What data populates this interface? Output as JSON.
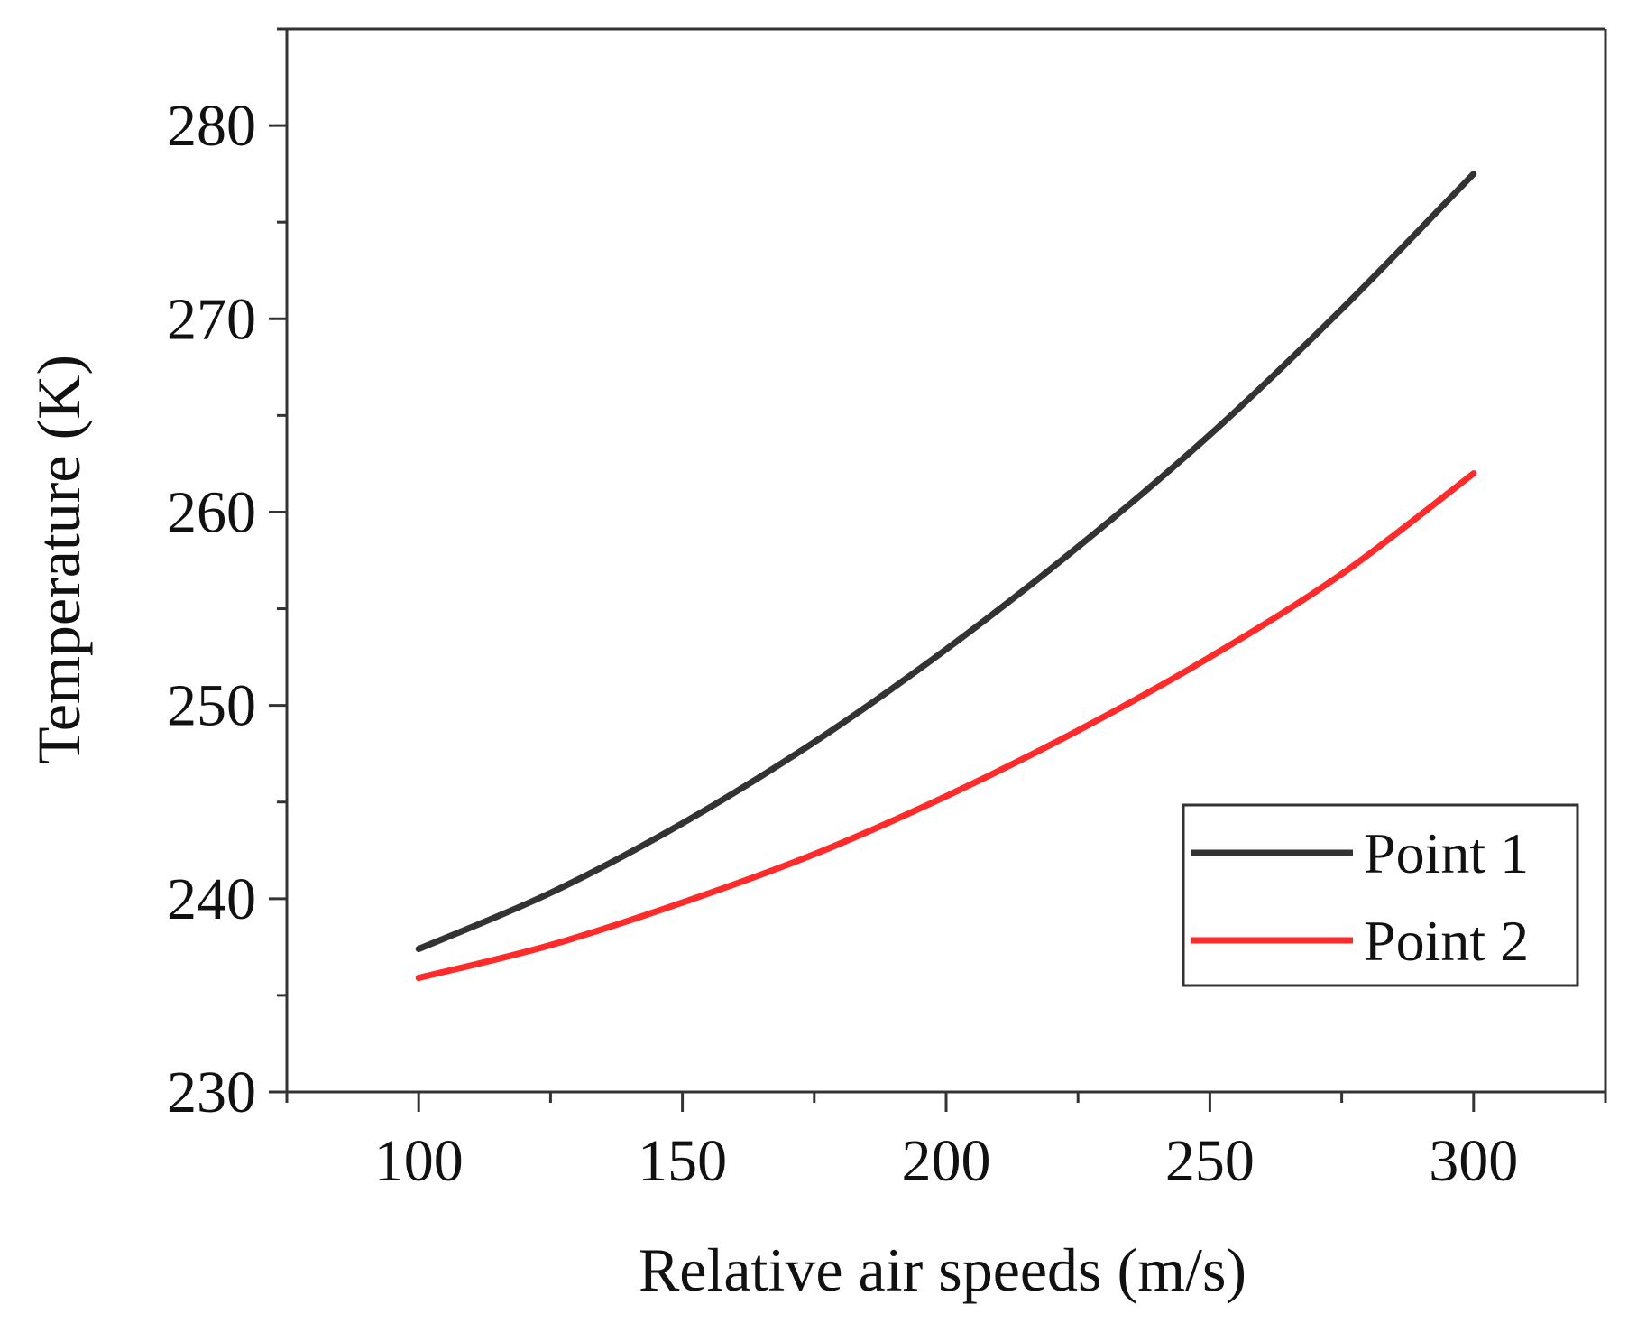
{
  "chart_data": {
    "type": "line",
    "xlabel": "Relative air speeds (m/s)",
    "ylabel": "Temperature (K)",
    "xlim": [
      75,
      325
    ],
    "ylim": [
      230,
      285
    ],
    "xticks": [
      100,
      150,
      200,
      250,
      300
    ],
    "yticks": [
      230,
      240,
      250,
      260,
      270,
      280
    ],
    "grid": false,
    "legend_position": "bottom-right",
    "x": [
      100,
      125,
      150,
      175,
      200,
      225,
      250,
      275,
      300
    ],
    "series": [
      {
        "name": "Point 1",
        "color": "#333333",
        "values": [
          237.4,
          240.3,
          243.9,
          248.1,
          252.9,
          258.2,
          264.0,
          270.5,
          277.5
        ]
      },
      {
        "name": "Point 2",
        "color": "#ff2a2a",
        "values": [
          235.9,
          237.6,
          239.8,
          242.3,
          245.3,
          248.7,
          252.5,
          256.8,
          262.0
        ]
      }
    ]
  }
}
